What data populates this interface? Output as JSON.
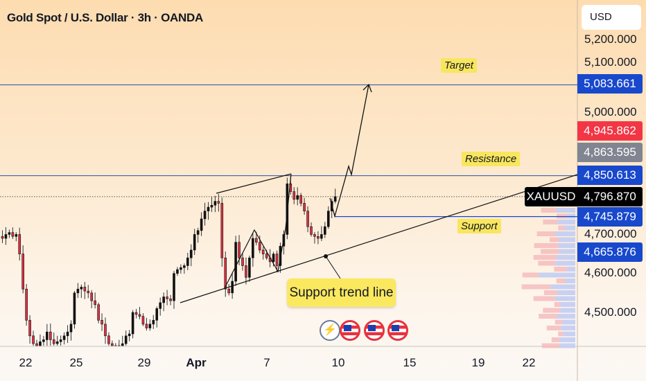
{
  "header": {
    "title": "Gold Spot / U.S. Dollar · 3h · OANDA",
    "currency_button": "USD"
  },
  "price_axis": {
    "ticks": [
      "5,200.000",
      "5,100.000",
      "5,000.000",
      "4,700.000",
      "4,600.000",
      "4,500.000"
    ]
  },
  "price_tags": [
    {
      "value": "5,083.661",
      "color": "#1848cc"
    },
    {
      "value": "4,945.862",
      "color": "#f23645"
    },
    {
      "value": "4,863.595",
      "color": "#808591"
    },
    {
      "value": "4,850.613",
      "color": "#1848cc"
    },
    {
      "value": "4,745.879",
      "color": "#1848cc"
    },
    {
      "value": "4,665.876",
      "color": "#1848cc"
    }
  ],
  "symbol_tag": {
    "symbol": "XAUUSD",
    "price": "4,796.870"
  },
  "time_axis": {
    "labels": [
      "22",
      "25",
      "29",
      "Apr",
      "7",
      "10",
      "15",
      "19",
      "22"
    ]
  },
  "annotations": {
    "target": "Target",
    "resistance": "Resistance",
    "support": "Support",
    "callout": "Support trend line"
  },
  "events": [
    {
      "icon": "lightning-icon"
    },
    {
      "icon": "us-flag-icon"
    },
    {
      "icon": "us-flag-icon"
    },
    {
      "icon": "us-flag-icon"
    }
  ],
  "chart_data": {
    "type": "candlestick",
    "title": "Gold Spot / U.S. Dollar · 3h · OANDA",
    "ylim": [
      4420,
      5240
    ],
    "levels": {
      "target": 5083.661,
      "resistance": 4850.613,
      "support": 4745.879,
      "last": 4796.87
    },
    "closes": [
      4690,
      4700,
      4705,
      4695,
      4700,
      4650,
      4560,
      4480,
      4440,
      4420,
      4410,
      4425,
      4430,
      4450,
      4430,
      4420,
      4425,
      4430,
      4440,
      4450,
      4470,
      4550,
      4560,
      4565,
      4555,
      4550,
      4530,
      4520,
      4480,
      4470,
      4440,
      4420,
      4410,
      4415,
      4410,
      4420,
      4440,
      4445,
      4500,
      4495,
      4490,
      4470,
      4460,
      4470,
      4480,
      4510,
      4525,
      4540,
      4535,
      4530,
      4600,
      4610,
      4615,
      4620,
      4640,
      4660,
      4700,
      4710,
      4740,
      4760,
      4770,
      4775,
      4785,
      4780,
      4640,
      4560,
      4550,
      4580,
      4680,
      4640,
      4620,
      4590,
      4640,
      4690,
      4680,
      4660,
      4650,
      4640,
      4630,
      4650,
      4620,
      4670,
      4700,
      4830,
      4810,
      4790,
      4800,
      4780,
      4760,
      4720,
      4700,
      4695,
      4690,
      4700,
      4720,
      4760,
      4785,
      4797
    ]
  }
}
